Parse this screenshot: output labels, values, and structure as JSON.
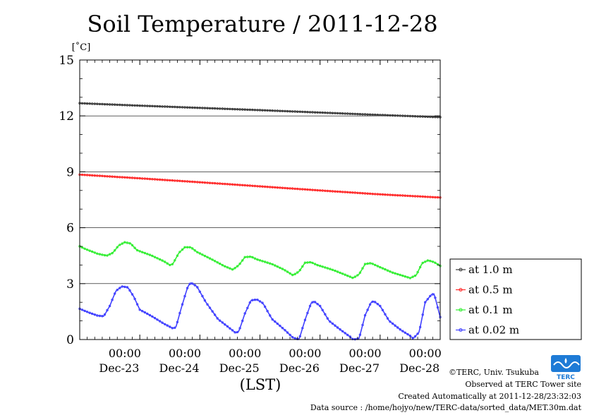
{
  "chart_data": {
    "type": "line",
    "title": "Soil Temperature / 2011-12-28",
    "ylabel": "[˚C]",
    "xlabel": "(LST)",
    "ylim": [
      0,
      15
    ],
    "xlim_days": [
      0,
      6
    ],
    "yticks": [
      0,
      3,
      6,
      9,
      12,
      15
    ],
    "xticks": [
      {
        "day": 1,
        "time": "00:00",
        "date": "Dec-23"
      },
      {
        "day": 2,
        "time": "00:00",
        "date": "Dec-24"
      },
      {
        "day": 3,
        "time": "00:00",
        "date": "Dec-25"
      },
      {
        "day": 4,
        "time": "00:00",
        "date": "Dec-26"
      },
      {
        "day": 5,
        "time": "00:00",
        "date": "Dec-27"
      },
      {
        "day": 6,
        "time": "00:00",
        "date": "Dec-28"
      }
    ],
    "legend_position": "bottom-right, outside plot",
    "grid": "horizontal lines at y ticks",
    "series": [
      {
        "name": "at 1.0 m",
        "color": "#3c3c3c",
        "points": [
          [
            0.0,
            12.68
          ],
          [
            1.0,
            12.55
          ],
          [
            2.0,
            12.43
          ],
          [
            3.0,
            12.31
          ],
          [
            4.0,
            12.18
          ],
          [
            5.0,
            12.05
          ],
          [
            6.0,
            11.93
          ]
        ]
      },
      {
        "name": "at 0.5 m",
        "color": "#ff2a2a",
        "points": [
          [
            0.0,
            8.85
          ],
          [
            1.0,
            8.65
          ],
          [
            2.0,
            8.44
          ],
          [
            3.0,
            8.22
          ],
          [
            4.0,
            8.0
          ],
          [
            5.0,
            7.79
          ],
          [
            6.0,
            7.62
          ]
        ]
      },
      {
        "name": "at 0.1 m",
        "color": "#33ee33",
        "points": [
          [
            0.0,
            5.0
          ],
          [
            0.1,
            4.85
          ],
          [
            0.3,
            4.6
          ],
          [
            0.45,
            4.5
          ],
          [
            0.55,
            4.65
          ],
          [
            0.65,
            5.05
          ],
          [
            0.75,
            5.22
          ],
          [
            0.85,
            5.15
          ],
          [
            0.95,
            4.8
          ],
          [
            1.2,
            4.5
          ],
          [
            1.4,
            4.2
          ],
          [
            1.5,
            4.0
          ],
          [
            1.55,
            4.05
          ],
          [
            1.65,
            4.65
          ],
          [
            1.75,
            4.95
          ],
          [
            1.85,
            4.95
          ],
          [
            1.95,
            4.7
          ],
          [
            2.2,
            4.3
          ],
          [
            2.4,
            3.95
          ],
          [
            2.55,
            3.75
          ],
          [
            2.65,
            4.0
          ],
          [
            2.75,
            4.42
          ],
          [
            2.85,
            4.45
          ],
          [
            2.95,
            4.3
          ],
          [
            3.2,
            4.05
          ],
          [
            3.4,
            3.75
          ],
          [
            3.55,
            3.45
          ],
          [
            3.65,
            3.65
          ],
          [
            3.75,
            4.12
          ],
          [
            3.85,
            4.15
          ],
          [
            3.95,
            4.0
          ],
          [
            4.2,
            3.75
          ],
          [
            4.4,
            3.5
          ],
          [
            4.55,
            3.3
          ],
          [
            4.65,
            3.5
          ],
          [
            4.75,
            4.05
          ],
          [
            4.85,
            4.1
          ],
          [
            4.95,
            3.95
          ],
          [
            5.2,
            3.6
          ],
          [
            5.4,
            3.4
          ],
          [
            5.5,
            3.3
          ],
          [
            5.6,
            3.45
          ],
          [
            5.7,
            4.1
          ],
          [
            5.8,
            4.25
          ],
          [
            5.9,
            4.15
          ],
          [
            6.0,
            3.95
          ]
        ]
      },
      {
        "name": "at 0.02 m",
        "color": "#4040ff",
        "points": [
          [
            0.0,
            1.65
          ],
          [
            0.15,
            1.45
          ],
          [
            0.3,
            1.28
          ],
          [
            0.4,
            1.25
          ],
          [
            0.5,
            1.8
          ],
          [
            0.6,
            2.6
          ],
          [
            0.7,
            2.85
          ],
          [
            0.8,
            2.8
          ],
          [
            0.9,
            2.3
          ],
          [
            1.0,
            1.6
          ],
          [
            1.2,
            1.25
          ],
          [
            1.4,
            0.85
          ],
          [
            1.55,
            0.6
          ],
          [
            1.6,
            0.65
          ],
          [
            1.7,
            1.8
          ],
          [
            1.8,
            2.85
          ],
          [
            1.85,
            3.05
          ],
          [
            1.95,
            2.85
          ],
          [
            2.1,
            2.0
          ],
          [
            2.3,
            1.1
          ],
          [
            2.5,
            0.6
          ],
          [
            2.6,
            0.35
          ],
          [
            2.65,
            0.45
          ],
          [
            2.75,
            1.4
          ],
          [
            2.85,
            2.1
          ],
          [
            2.95,
            2.15
          ],
          [
            3.05,
            1.95
          ],
          [
            3.2,
            1.1
          ],
          [
            3.4,
            0.55
          ],
          [
            3.55,
            0.1
          ],
          [
            3.65,
            0.0
          ],
          [
            3.75,
            1.05
          ],
          [
            3.85,
            1.95
          ],
          [
            3.9,
            2.05
          ],
          [
            4.0,
            1.8
          ],
          [
            4.15,
            1.0
          ],
          [
            4.35,
            0.5
          ],
          [
            4.5,
            0.15
          ],
          [
            4.55,
            0.0
          ],
          [
            4.65,
            0.05
          ],
          [
            4.75,
            1.3
          ],
          [
            4.85,
            2.0
          ],
          [
            4.9,
            2.05
          ],
          [
            5.0,
            1.8
          ],
          [
            5.15,
            1.0
          ],
          [
            5.35,
            0.5
          ],
          [
            5.5,
            0.2
          ],
          [
            5.55,
            0.05
          ],
          [
            5.65,
            0.4
          ],
          [
            5.75,
            2.0
          ],
          [
            5.85,
            2.4
          ],
          [
            5.9,
            2.45
          ],
          [
            6.0,
            1.2
          ],
          [
            6.0,
            0.8
          ]
        ]
      }
    ]
  },
  "credits": {
    "copyright": "©TERC, Univ. Tsukuba",
    "observed": "Observed at TERC Tower site",
    "created": "Created Automatically at 2011-12-28/23:32:03",
    "source": "Data source : /home/hojyo/new/TERC-data/sorted_data/MET.30m.dat"
  },
  "logo": {
    "text": "TERC",
    "color": "#1e7bd6"
  }
}
